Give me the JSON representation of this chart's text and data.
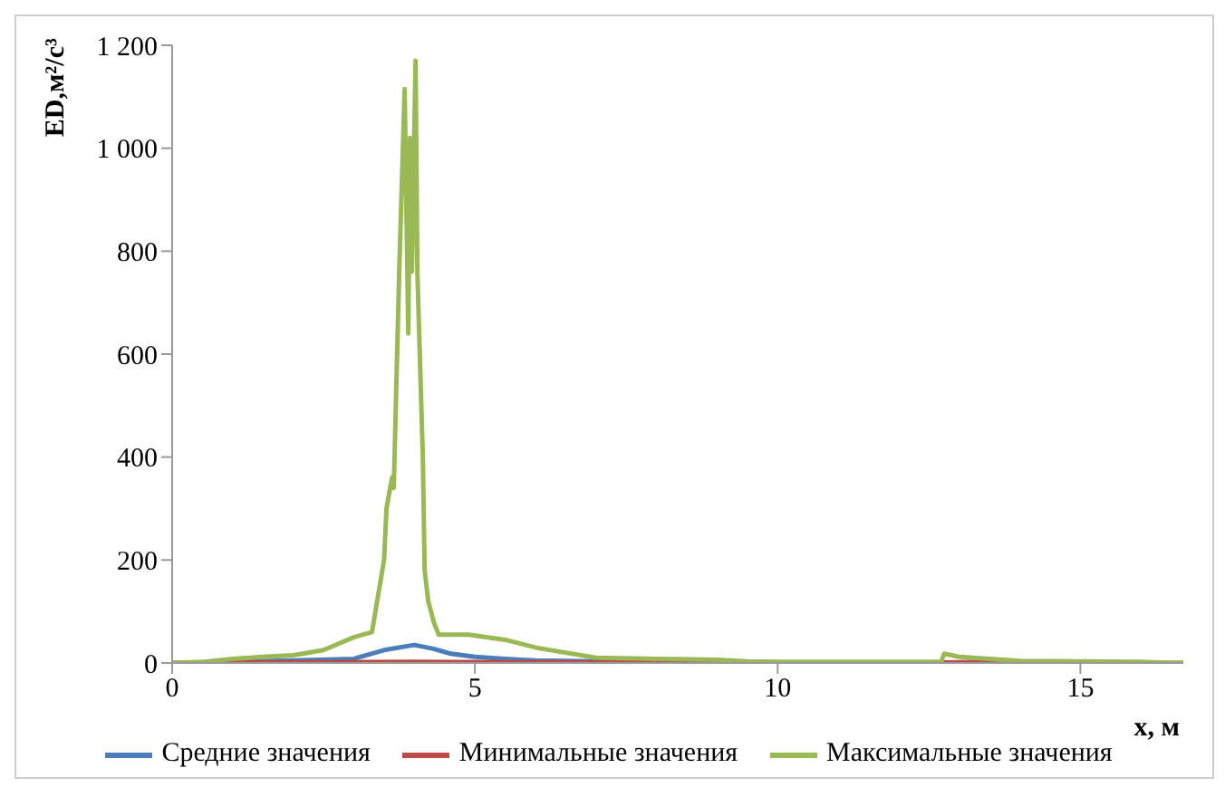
{
  "chart_data": {
    "type": "line",
    "xlabel": "x, м",
    "ylabel": "ED,м²/с³",
    "xlim": [
      0,
      16.7
    ],
    "xticks": [
      0,
      5,
      10,
      15
    ],
    "ylim": [
      0,
      1200
    ],
    "yticks": [
      0,
      200,
      400,
      600,
      800,
      {
        "value": 1000,
        "label": "1 000"
      },
      {
        "value": 1200,
        "label": "1 200"
      }
    ],
    "grid": false,
    "legend": "bottom",
    "marker": "none",
    "line_style": "solid",
    "series": [
      {
        "name": "Средние значения",
        "color": "#4a7ebb",
        "x": [
          0,
          1,
          2,
          3,
          3.5,
          4,
          4.3,
          4.6,
          5,
          5.5,
          6,
          7,
          8
        ],
        "values": [
          0,
          2,
          5,
          8,
          25,
          35,
          28,
          18,
          12,
          8,
          5,
          3,
          2
        ]
      },
      {
        "name": "Минимальные значения",
        "color": "#be4b48",
        "x": [
          0,
          1,
          4,
          8,
          12.7,
          13.5,
          14,
          16.7
        ],
        "values": [
          0,
          1,
          2,
          1,
          1,
          2,
          1,
          0
        ]
      },
      {
        "name": "Максимальные значения",
        "color": "#98b954",
        "x": [
          0,
          0.5,
          1,
          1.5,
          2,
          2.5,
          3,
          3.3,
          3.5,
          3.54,
          3.63,
          3.66,
          3.75,
          3.84,
          3.9,
          3.93,
          3.96,
          4.02,
          4.05,
          4.14,
          4.17,
          4.23,
          4.32,
          4.4,
          4.9,
          5.5,
          6,
          6.5,
          7,
          8,
          9,
          9.5,
          10,
          12.7,
          12.75,
          13,
          13.5,
          14,
          15,
          16,
          16.7
        ],
        "values": [
          0,
          2,
          8,
          12,
          15,
          25,
          50,
          60,
          200,
          300,
          360,
          340,
          760,
          1115,
          640,
          1020,
          760,
          1170,
          760,
          400,
          180,
          120,
          80,
          55,
          55,
          45,
          30,
          20,
          10,
          8,
          6,
          3,
          2,
          2,
          18,
          12,
          8,
          4,
          3,
          2,
          0
        ]
      }
    ]
  }
}
